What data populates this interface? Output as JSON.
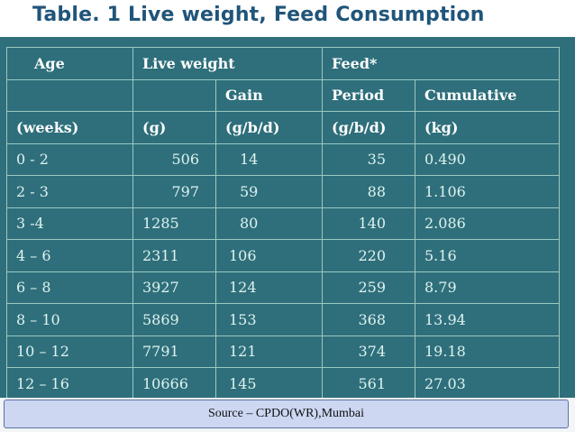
{
  "title": "Table. 1 Live weight, Feed Consumption",
  "header": {
    "row1": {
      "age": "Age",
      "live_weight": "Live weight",
      "feed": "Feed*"
    },
    "row2": {
      "gain": "Gain",
      "period": "Period",
      "cumulative": "Cumulative"
    },
    "row3": {
      "weeks": "(weeks)",
      "g": "(g)",
      "gbd": "(g/b/d)",
      "gbd2": "(g/b/d)",
      "kg": "(kg)"
    }
  },
  "rows": [
    {
      "age": "0 - 2",
      "weight": "506",
      "gain": "14",
      "period": "35",
      "cumulative": "0.490"
    },
    {
      "age": "2 - 3",
      "weight": "797",
      "gain": "59",
      "period": "88",
      "cumulative": "1.106"
    },
    {
      "age": "3 -4",
      "weight": "1285",
      "gain": "80",
      "period": "140",
      "cumulative": "2.086"
    },
    {
      "age": "4 – 6",
      "weight": "2311",
      "gain": "106",
      "period": "220",
      "cumulative": "5.16"
    },
    {
      "age": "6 – 8",
      "weight": "3927",
      "gain": "124",
      "period": "259",
      "cumulative": "8.79"
    },
    {
      "age": "8 – 10",
      "weight": "5869",
      "gain": "153",
      "period": "368",
      "cumulative": "13.94"
    },
    {
      "age": "10 – 12",
      "weight": "7791",
      "gain": "121",
      "period": "374",
      "cumulative": "19.18"
    },
    {
      "age": "12 – 16",
      "weight": "10666",
      "gain": "145",
      "period": "561",
      "cumulative": "27.03"
    }
  ],
  "source": "Source – CPDO(WR),Mumbai",
  "colors": {
    "table_bg": "#2e6f7b",
    "title": "#20557a",
    "source_box": "#cdd7f2"
  }
}
